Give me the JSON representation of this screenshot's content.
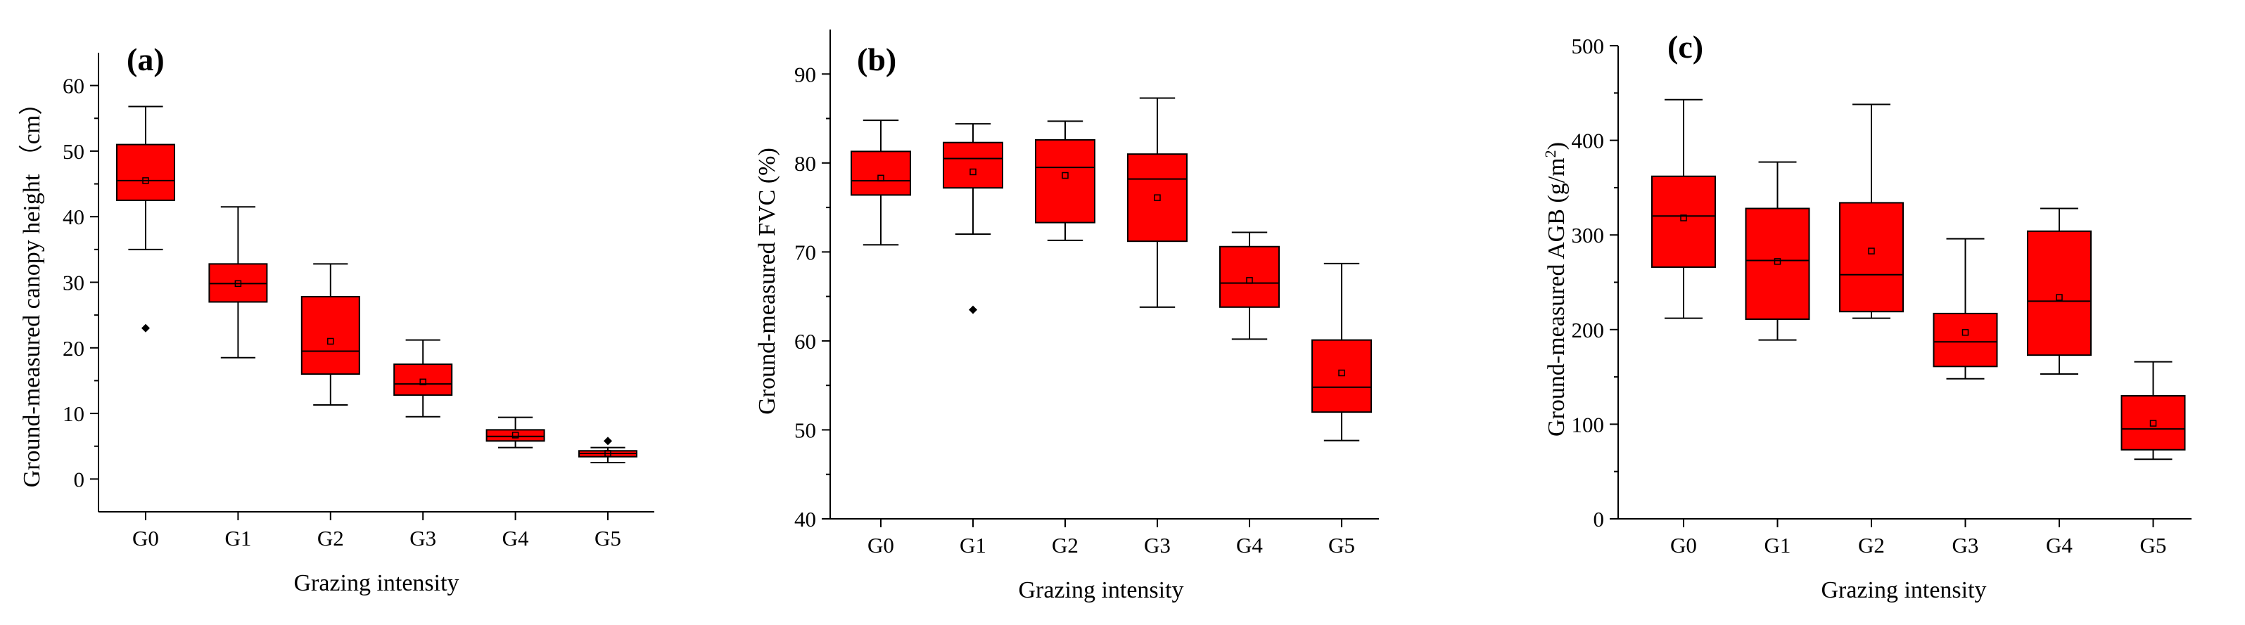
{
  "chart_data": [
    {
      "type": "box",
      "panel_label": "(a)",
      "xlabel": "Grazing intensity",
      "ylabel": "Ground-measured canopy height （cm）",
      "categories": [
        "G0",
        "G1",
        "G2",
        "G3",
        "G4",
        "G5"
      ],
      "ylim": [
        -5,
        65
      ],
      "yticks": [
        0,
        10,
        20,
        30,
        40,
        50,
        60
      ],
      "ytick_labels": [
        "0",
        "10",
        "20",
        "30",
        "40",
        "50",
        "60"
      ],
      "grid": false,
      "box_color": "#ff0000",
      "boxes": [
        {
          "min": 35,
          "q1": 42.5,
          "median": 45.5,
          "q3": 51,
          "max": 56.8,
          "mean": 45.5,
          "outliers": [
            23
          ]
        },
        {
          "min": 18.5,
          "q1": 27,
          "median": 29.8,
          "q3": 32.8,
          "max": 41.5,
          "mean": 29.8,
          "outliers": []
        },
        {
          "min": 11.3,
          "q1": 16,
          "median": 19.5,
          "q3": 27.8,
          "max": 32.8,
          "mean": 21,
          "outliers": []
        },
        {
          "min": 9.5,
          "q1": 12.8,
          "median": 14.5,
          "q3": 17.5,
          "max": 21.2,
          "mean": 14.8,
          "outliers": []
        },
        {
          "min": 4.8,
          "q1": 5.8,
          "median": 6.5,
          "q3": 7.5,
          "max": 9.4,
          "mean": 6.7,
          "outliers": []
        },
        {
          "min": 2.5,
          "q1": 3.4,
          "median": 3.9,
          "q3": 4.3,
          "max": 4.8,
          "mean": 3.9,
          "outliers": [
            5.8
          ]
        }
      ]
    },
    {
      "type": "box",
      "panel_label": "(b)",
      "xlabel": "Grazing intensity",
      "ylabel": "Ground-measured FVC (%)",
      "categories": [
        "G0",
        "G1",
        "G2",
        "G3",
        "G4",
        "G5"
      ],
      "ylim": [
        40,
        95
      ],
      "yticks": [
        40,
        50,
        60,
        70,
        80,
        90
      ],
      "ytick_labels": [
        "40",
        "50",
        "60",
        "70",
        "80",
        "90"
      ],
      "grid": false,
      "box_color": "#ff0000",
      "boxes": [
        {
          "min": 70.8,
          "q1": 76.4,
          "median": 78,
          "q3": 81.3,
          "max": 84.8,
          "mean": 78.3,
          "outliers": []
        },
        {
          "min": 72,
          "q1": 77.2,
          "median": 80.5,
          "q3": 82.3,
          "max": 84.4,
          "mean": 79,
          "outliers": [
            63.5
          ]
        },
        {
          "min": 71.3,
          "q1": 73.3,
          "median": 79.5,
          "q3": 82.6,
          "max": 84.7,
          "mean": 78.6,
          "outliers": []
        },
        {
          "min": 63.8,
          "q1": 71.2,
          "median": 78.2,
          "q3": 81,
          "max": 87.3,
          "mean": 76.1,
          "outliers": []
        },
        {
          "min": 60.2,
          "q1": 63.8,
          "median": 66.5,
          "q3": 70.6,
          "max": 72.2,
          "mean": 66.8,
          "outliers": []
        },
        {
          "min": 48.8,
          "q1": 52,
          "median": 54.8,
          "q3": 60.1,
          "max": 68.7,
          "mean": 56.4,
          "outliers": []
        }
      ]
    },
    {
      "type": "box",
      "panel_label": "(c)",
      "xlabel": "Grazing intensity",
      "ylabel": "Ground-measured AGB (g/m",
      "ylabel_superscript": "2",
      "ylabel_suffix": ")",
      "categories": [
        "G0",
        "G1",
        "G2",
        "G3",
        "G4",
        "G5"
      ],
      "ylim": [
        0,
        500
      ],
      "yticks": [
        0,
        100,
        200,
        300,
        400,
        500
      ],
      "ytick_labels": [
        "0",
        "100",
        "200",
        "300",
        "400",
        "500"
      ],
      "grid": false,
      "box_color": "#ff0000",
      "boxes": [
        {
          "min": 212,
          "q1": 266,
          "median": 320,
          "q3": 362,
          "max": 443,
          "mean": 318,
          "outliers": []
        },
        {
          "min": 189,
          "q1": 211,
          "median": 273,
          "q3": 328,
          "max": 377,
          "mean": 272,
          "outliers": []
        },
        {
          "min": 212,
          "q1": 219,
          "median": 258,
          "q3": 334,
          "max": 438,
          "mean": 283,
          "outliers": []
        },
        {
          "min": 148,
          "q1": 161,
          "median": 187,
          "q3": 217,
          "max": 296,
          "mean": 197,
          "outliers": []
        },
        {
          "min": 153,
          "q1": 173,
          "median": 230,
          "q3": 304,
          "max": 328,
          "mean": 234,
          "outliers": []
        },
        {
          "min": 63,
          "q1": 73,
          "median": 95,
          "q3": 130,
          "max": 166,
          "mean": 101,
          "outliers": []
        }
      ]
    }
  ]
}
